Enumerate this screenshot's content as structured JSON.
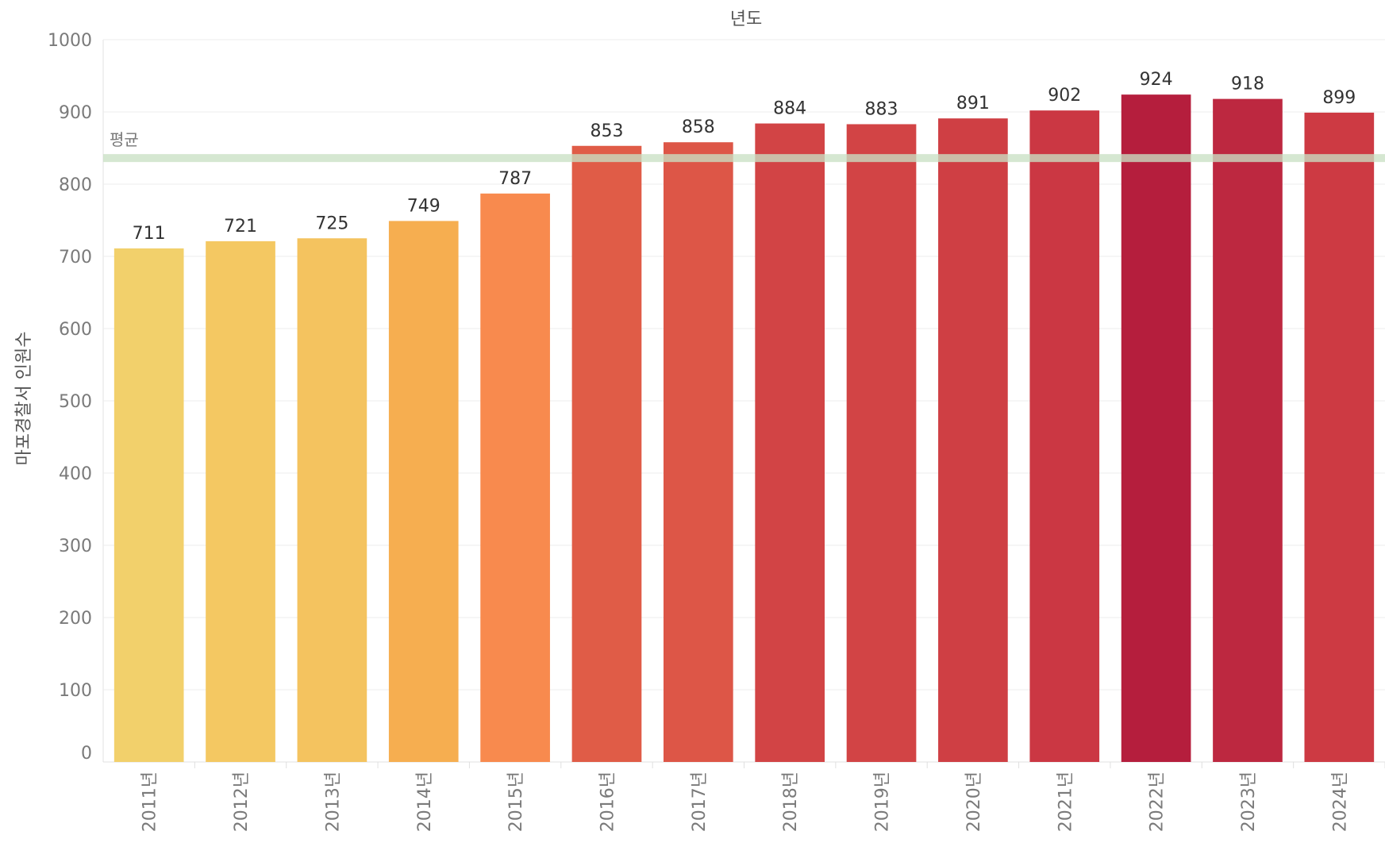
{
  "chart_data": {
    "type": "bar",
    "title": "년도",
    "xlabel": "",
    "ylabel": "마포경찰서 인원수",
    "ylim": [
      0,
      1000
    ],
    "yticks": [
      0,
      100,
      200,
      300,
      400,
      500,
      600,
      700,
      800,
      900,
      1000
    ],
    "grid": true,
    "categories": [
      "2011년",
      "2012년",
      "2013년",
      "2014년",
      "2015년",
      "2016년",
      "2017년",
      "2018년",
      "2019년",
      "2020년",
      "2021년",
      "2022년",
      "2023년",
      "2024년"
    ],
    "values": [
      711,
      721,
      725,
      749,
      787,
      853,
      858,
      884,
      883,
      891,
      902,
      924,
      918,
      899
    ],
    "bar_colors": [
      "#f2d06b",
      "#f4c862",
      "#f4c35f",
      "#f6ae50",
      "#f88a4e",
      "#e05c47",
      "#dd5647",
      "#d24445",
      "#d24445",
      "#cf3f44",
      "#cb3743",
      "#b51e3d",
      "#bd2840",
      "#cd3a43"
    ],
    "reference_line": {
      "label": "평균",
      "value": 836.1,
      "color": "#c9e0c4"
    },
    "colors": {
      "grid": "#ececec",
      "axis": "#e0e0e0",
      "tick_text": "#7a7a7a",
      "label_text": "#333333"
    }
  }
}
